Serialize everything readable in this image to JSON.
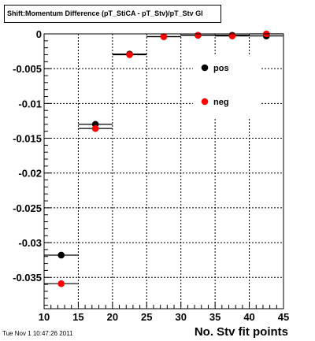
{
  "title": "Shift:Momentum Difference (pT_StiCA - pT_Stv)/pT_Stv Gl",
  "timestamp": "Tue Nov  1 10:47:26 2011",
  "chart_data": {
    "type": "scatter",
    "title": "Shift:Momentum Difference (pT_StiCA - pT_Stv)/pT_Stv Gl",
    "xlabel": "No. Stv fit points",
    "ylabel": "",
    "xlim": [
      10,
      45
    ],
    "ylim": [
      -0.0395,
      0
    ],
    "grid": true,
    "x_ticks": [
      10,
      15,
      20,
      25,
      30,
      35,
      40,
      45
    ],
    "x_tick_labels": [
      "10",
      "15",
      "20",
      "25",
      "30",
      "35",
      "40",
      "45"
    ],
    "y_ticks": [
      0,
      -0.005,
      -0.01,
      -0.015,
      -0.02,
      -0.025,
      -0.03,
      -0.035
    ],
    "y_tick_labels": [
      "0",
      "-0.005",
      "-0.01",
      "-0.015",
      "-0.02",
      "-0.025",
      "-0.03",
      "-0.035"
    ],
    "bin_edges": [
      10,
      15,
      20,
      25,
      30,
      35,
      40,
      45
    ],
    "legend_placement": "right",
    "series": [
      {
        "name": "pos",
        "color": "#000000",
        "x": [
          12.5,
          17.5,
          22.5,
          27.5,
          32.5,
          37.5,
          42.5
        ],
        "y": [
          -0.0318,
          -0.013,
          -0.0029,
          -0.0004,
          -0.0002,
          -0.0002,
          -0.0003
        ]
      },
      {
        "name": "neg",
        "color": "#ff0000",
        "x": [
          12.5,
          17.5,
          22.5,
          27.5,
          32.5,
          37.5,
          42.5
        ],
        "y": [
          -0.0359,
          -0.0136,
          -0.003,
          -0.0004,
          -0.0002,
          -0.0003,
          0.0
        ]
      }
    ]
  }
}
